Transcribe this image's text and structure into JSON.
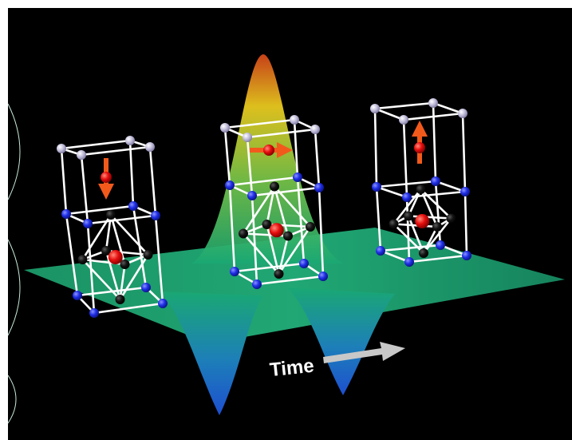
{
  "diagram": {
    "time_label": "Time",
    "colors": {
      "background": "#000000",
      "surface_green": "#1aa873",
      "peak_yellow": "#f0d020",
      "peak_red": "#d8461a",
      "trough_blue": "#1d5fd0",
      "lattice_rod": "#ffffff",
      "atom_lavender": "#c4c0dc",
      "atom_blue": "#1f2ee6",
      "atom_black": "#0c0c0c",
      "atom_red": "#e60d0d",
      "spin_arrow": "#f25a1c",
      "time_arrow": "#c8c8c8"
    },
    "crystals": [
      {
        "name": "left",
        "spin": "down"
      },
      {
        "name": "center",
        "spin": "right"
      },
      {
        "name": "right",
        "spin": "up"
      }
    ]
  }
}
